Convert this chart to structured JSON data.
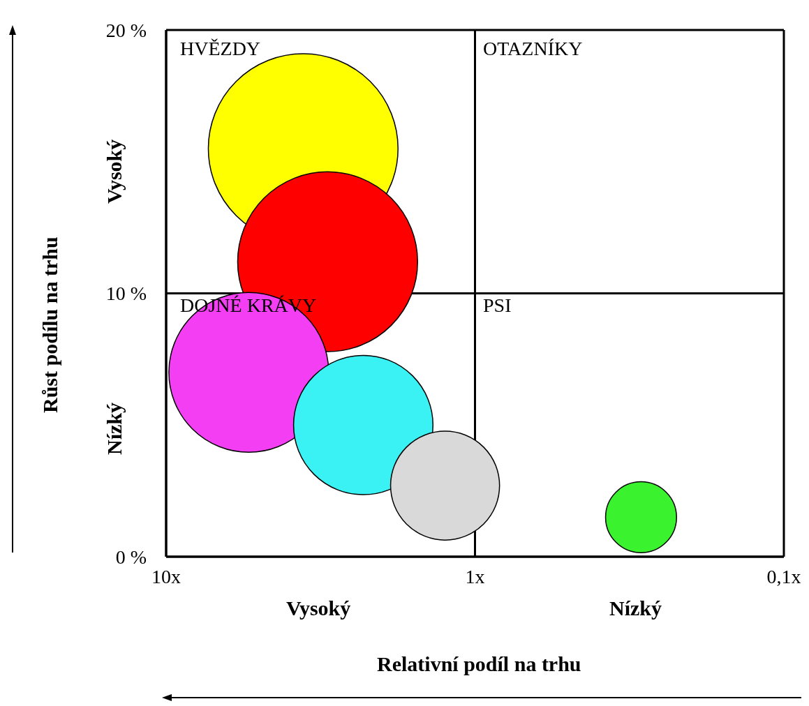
{
  "chart_data": {
    "type": "bubble",
    "xlabel": "Relativní podíl na trhu",
    "ylabel": "Růst podílu na trhu",
    "x": [
      3.6,
      3.0,
      5.4,
      2.3,
      1.25,
      0.29
    ],
    "values": [
      15.5,
      11.2,
      7.0,
      5.0,
      2.7,
      1.5
    ],
    "sizes": [
      1,
      0.9,
      0.71,
      0.54,
      0.33,
      0.14
    ],
    "colors": [
      "#ffff00",
      "#ff0000",
      "#f43ef4",
      "#3af2f4",
      "#d9d9d9",
      "#3af22d"
    ],
    "log": "x",
    "xlim": [
      10,
      0.1
    ],
    "xticks": [
      {
        "value": 10,
        "label": "10x"
      },
      {
        "value": 1,
        "label": "1x"
      },
      {
        "value": 0.1,
        "label": "0,1x"
      }
    ],
    "ylim": [
      0,
      20
    ],
    "yticks": [
      {
        "value": 0,
        "label": "0 %"
      },
      {
        "value": 10,
        "label": "10 %"
      },
      {
        "value": 20,
        "label": "20 %"
      }
    ],
    "grid": true,
    "annotations": [
      "HVĚZDY",
      "OTAZNÍKY",
      "DOJNÉ KRÁVY",
      "PSI",
      "Vysoký",
      "Nízký",
      "Vysoký",
      "Nízký"
    ]
  }
}
